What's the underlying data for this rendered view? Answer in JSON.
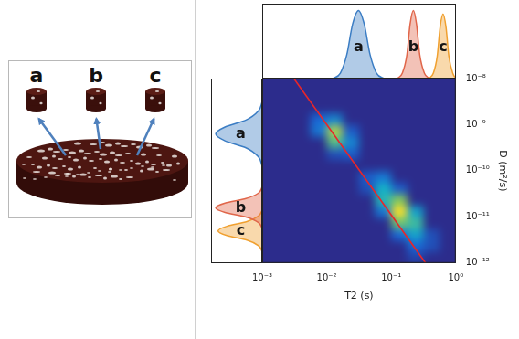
{
  "illustration": {
    "samples": [
      "a",
      "b",
      "c"
    ]
  },
  "chart_data": [
    {
      "type": "heatmap",
      "x_label": "T2 (s)",
      "y_label": "D (m²/s)",
      "log": true,
      "grid": false,
      "xlim": [
        0.001,
        1
      ],
      "ylim": [
        1e-12,
        1e-08
      ],
      "xticks": [
        {
          "value": 0.001,
          "label": "10⁻³"
        },
        {
          "value": 0.01,
          "label": "10⁻²"
        },
        {
          "value": 0.1,
          "label": "10⁻¹"
        },
        {
          "value": 1,
          "label": "10⁰"
        }
      ],
      "yticks": [
        {
          "value": 1e-12,
          "label": "10⁻¹²"
        },
        {
          "value": 1e-11,
          "label": "10⁻¹¹"
        },
        {
          "value": 1e-10,
          "label": "10⁻¹⁰"
        },
        {
          "value": 1e-09,
          "label": "10⁻⁹"
        },
        {
          "value": 1e-08,
          "label": "10⁻⁸"
        }
      ],
      "x_edges": [
        0.001,
        0.00178,
        0.00316,
        0.00562,
        0.01,
        0.0178,
        0.0316,
        0.0562,
        0.1,
        0.178,
        0.316,
        0.562,
        1
      ],
      "y_edges": [
        1e-12,
        1.78e-12,
        3.16e-12,
        5.62e-12,
        1e-11,
        1.78e-11,
        3.16e-11,
        5.62e-11,
        1e-10,
        1.78e-10,
        3.16e-10,
        5.62e-10,
        1e-09,
        1.78e-09,
        3.16e-09,
        5.62e-09,
        1e-08
      ],
      "cells": [
        [
          0,
          0,
          0,
          0,
          0,
          0,
          0,
          0,
          0,
          0.1,
          0,
          0
        ],
        [
          0,
          0,
          0,
          0,
          0,
          0,
          0,
          0,
          0,
          0.25,
          0.15,
          0
        ],
        [
          0,
          0,
          0,
          0,
          0,
          0,
          0,
          0,
          0.25,
          0.45,
          0.15,
          0
        ],
        [
          0,
          0,
          0,
          0,
          0,
          0,
          0,
          0,
          0.7,
          0.6,
          0,
          0
        ],
        [
          0,
          0,
          0,
          0,
          0,
          0,
          0,
          0.3,
          1,
          0.45,
          0,
          0
        ],
        [
          0,
          0,
          0,
          0,
          0,
          0,
          0,
          0.55,
          0.75,
          0,
          0,
          0
        ],
        [
          0,
          0,
          0,
          0,
          0,
          0,
          0.15,
          0.5,
          0.2,
          0,
          0,
          0
        ],
        [
          0,
          0,
          0,
          0,
          0,
          0,
          0.2,
          0.3,
          0,
          0,
          0,
          0
        ],
        [
          0,
          0,
          0,
          0,
          0,
          0,
          0,
          0,
          0,
          0,
          0,
          0
        ],
        [
          0,
          0,
          0,
          0,
          0.15,
          0.2,
          0,
          0,
          0,
          0,
          0,
          0
        ],
        [
          0,
          0,
          0,
          0,
          0.65,
          0.35,
          0,
          0,
          0,
          0,
          0,
          0
        ],
        [
          0,
          0,
          0,
          0.3,
          0.85,
          0.2,
          0,
          0,
          0,
          0,
          0,
          0
        ],
        [
          0,
          0,
          0,
          0.25,
          0.35,
          0,
          0,
          0,
          0,
          0,
          0,
          0
        ],
        [
          0,
          0,
          0,
          0,
          0,
          0,
          0,
          0,
          0,
          0,
          0,
          0
        ],
        [
          0,
          0,
          0,
          0,
          0,
          0,
          0,
          0,
          0,
          0,
          0,
          0
        ],
        [
          0,
          0,
          0,
          0,
          0,
          0,
          0,
          0,
          0,
          0,
          0,
          0
        ]
      ],
      "line": {
        "x": [
          0.0031,
          0.34
        ],
        "y": [
          1e-08,
          1e-12
        ],
        "color": "#e8262a"
      }
    },
    {
      "type": "line",
      "log": "x",
      "grid": false,
      "tick_labels": false,
      "xlim": [
        0.001,
        1
      ],
      "ylim": [
        0,
        1.1
      ],
      "series": [
        {
          "name": "a",
          "color": "#3b7dc4",
          "x": [
            0.0123,
            0.0162,
            0.0204,
            0.0251,
            0.0309,
            0.038,
            0.0468,
            0.0589,
            0.0776
          ],
          "values": [
            0,
            0.08,
            0.35,
            0.8,
            1,
            0.8,
            0.35,
            0.08,
            0
          ]
        },
        {
          "name": "b",
          "color": "#e0664a",
          "x": [
            0.123,
            0.148,
            0.174,
            0.195,
            0.219,
            0.245,
            0.275,
            0.324,
            0.389
          ],
          "values": [
            0,
            0.08,
            0.35,
            0.8,
            1,
            0.8,
            0.35,
            0.08,
            0
          ]
        },
        {
          "name": "c",
          "color": "#f0a030",
          "x": [
            0.38,
            0.447,
            0.513,
            0.569,
            0.631,
            0.7,
            0.776,
            0.891,
            1
          ],
          "values": [
            0,
            0.08,
            0.33,
            0.76,
            0.95,
            0.76,
            0.33,
            0.08,
            0
          ]
        }
      ]
    },
    {
      "type": "line",
      "orientation": "horizontal",
      "log": "y",
      "grid": false,
      "tick_labels": false,
      "xlim": [
        1.1,
        0
      ],
      "ylim": [
        1e-12,
        1e-08
      ],
      "series": [
        {
          "name": "a",
          "color": "#3b7dc4",
          "y": [
            1.26e-10,
            2e-10,
            3.16e-10,
            4.47e-10,
            6.31e-10,
            8.91e-10,
            1.26e-09,
            2e-09,
            3.16e-09
          ],
          "values": [
            0,
            0.08,
            0.35,
            0.8,
            1,
            0.8,
            0.35,
            0.08,
            0
          ]
        },
        {
          "name": "b",
          "color": "#e0664a",
          "y": [
            5.62e-12,
            7.59e-12,
            1e-11,
            1.26e-11,
            1.58e-11,
            2e-11,
            2.51e-11,
            3.31e-11,
            4.47e-11
          ],
          "values": [
            0,
            0.08,
            0.35,
            0.8,
            1,
            0.8,
            0.35,
            0.08,
            0
          ]
        },
        {
          "name": "c",
          "color": "#f0a030",
          "y": [
            1.78e-12,
            2.4e-12,
            3.16e-12,
            3.98e-12,
            5.01e-12,
            6.31e-12,
            7.94e-12,
            1.05e-11,
            1.41e-11
          ],
          "values": [
            0,
            0.08,
            0.33,
            0.76,
            0.95,
            0.76,
            0.33,
            0.08,
            0
          ]
        }
      ]
    }
  ]
}
